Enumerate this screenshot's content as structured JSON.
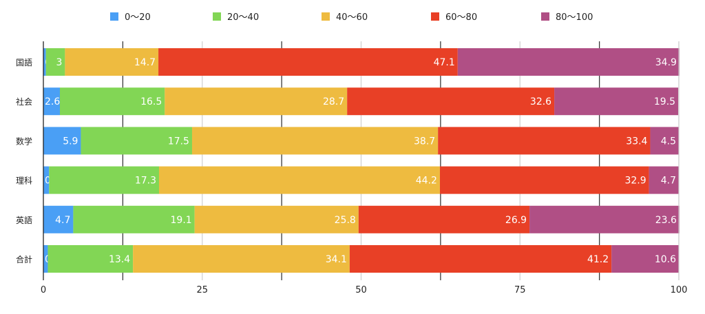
{
  "chart_data": {
    "type": "bar",
    "orientation": "horizontal",
    "stacked": true,
    "title": "",
    "xlabel": "",
    "ylabel": "",
    "xlim": [
      0,
      100
    ],
    "x_ticks": [
      0,
      25,
      50,
      75,
      100
    ],
    "x_tick_labels": [
      "0",
      "25",
      "50",
      "75",
      "100"
    ],
    "grid": true,
    "legend_position": "top-center",
    "categories": [
      "国語",
      "社会",
      "数学",
      "理科",
      "英語",
      "合計"
    ],
    "series": [
      {
        "name": "0〜20",
        "color": "#4a9ff5",
        "values": [
          0.4,
          2.6,
          5.9,
          0.9,
          4.7,
          0.7
        ]
      },
      {
        "name": "20〜40",
        "color": "#82d655",
        "values": [
          3,
          16.5,
          17.5,
          17.3,
          19.1,
          13.4
        ]
      },
      {
        "name": "40〜60",
        "color": "#eebb40",
        "values": [
          14.7,
          28.7,
          38.7,
          44.2,
          25.8,
          34.1
        ]
      },
      {
        "name": "60〜80",
        "color": "#e84026",
        "values": [
          47.1,
          32.6,
          33.4,
          32.9,
          26.9,
          41.2
        ]
      },
      {
        "name": "80〜100",
        "color": "#b04f85",
        "values": [
          34.9,
          19.5,
          4.5,
          4.7,
          23.6,
          10.6
        ]
      }
    ],
    "data_labels": [
      [
        "0.4",
        "3",
        "14.7",
        "47.1",
        "34.9"
      ],
      [
        "2.6",
        "16.5",
        "28.7",
        "32.6",
        "19.5"
      ],
      [
        "5.9",
        "17.5",
        "38.7",
        "33.4",
        "4.5"
      ],
      [
        "0.9",
        "17.3",
        "44.2",
        "32.9",
        "4.7"
      ],
      [
        "4.7",
        "19.1",
        "25.8",
        "26.9",
        "23.6"
      ],
      [
        "0.7",
        "13.4",
        "34.1",
        "41.2",
        "10.6"
      ]
    ]
  }
}
